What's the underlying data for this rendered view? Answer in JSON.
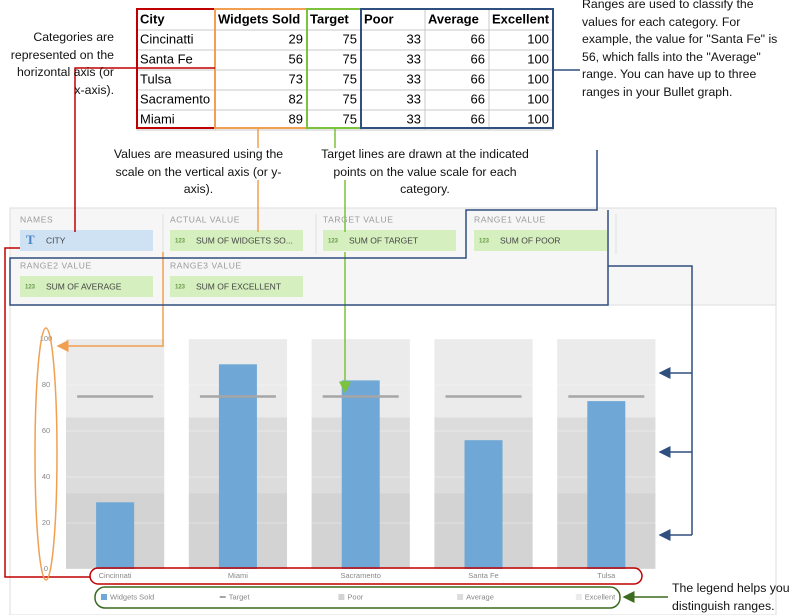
{
  "table": {
    "columns": [
      "City",
      "Widgets Sold",
      "Target",
      "Poor",
      "Average",
      "Excellent"
    ],
    "rows": [
      [
        "Cincinatti",
        29,
        75,
        33,
        66,
        100
      ],
      [
        "Santa Fe",
        56,
        75,
        33,
        66,
        100
      ],
      [
        "Tulsa",
        73,
        75,
        33,
        66,
        100
      ],
      [
        "Sacramento",
        82,
        75,
        33,
        66,
        100
      ],
      [
        "Miami",
        89,
        75,
        33,
        66,
        100
      ]
    ]
  },
  "annotations": {
    "categories": "Categories are represented on the horizontal axis (or x-axis).",
    "ranges": "Ranges are used to classify the values for each category. For example, the value for \"Santa Fe\" is 56, which falls into the \"Average\" range. You can have up to three ranges in your Bullet graph.",
    "values": "Values are measured using the scale on the vertical axis (or y-axis).",
    "targets": "Target lines are drawn at the indicated points on the value scale for each category.",
    "legend": "The legend helps you distinguish ranges."
  },
  "field_wells": [
    {
      "label": "NAMES",
      "icon": "T",
      "field": "CITY"
    },
    {
      "label": "ACTUAL VALUE",
      "icon": "123",
      "field": "SUM OF WIDGETS SO..."
    },
    {
      "label": "TARGET VALUE",
      "icon": "123",
      "field": "SUM OF TARGET"
    },
    {
      "label": "RANGE1 VALUE",
      "icon": "123",
      "field": "SUM OF POOR"
    },
    {
      "label": "RANGE2 VALUE",
      "icon": "123",
      "field": "SUM OF AVERAGE"
    },
    {
      "label": "RANGE3 VALUE",
      "icon": "123",
      "field": "SUM OF EXCELLENT"
    }
  ],
  "chart_data": {
    "type": "bullet",
    "categories": [
      "Cincinnati",
      "Miami",
      "Sacramento",
      "Santa Fe",
      "Tulsa"
    ],
    "series": [
      {
        "name": "Widgets Sold",
        "color": "#6fa8d6",
        "values": [
          29,
          89,
          82,
          56,
          73
        ]
      },
      {
        "name": "Target",
        "color": "#a6a6a6",
        "values": [
          75,
          75,
          75,
          75,
          75
        ]
      },
      {
        "name": "Poor",
        "color": "#d3d3d3",
        "values": [
          33,
          33,
          33,
          33,
          33
        ]
      },
      {
        "name": "Average",
        "color": "#dcdcdc",
        "values": [
          66,
          66,
          66,
          66,
          66
        ]
      },
      {
        "name": "Excellent",
        "color": "#ebebeb",
        "values": [
          100,
          100,
          100,
          100,
          100
        ]
      }
    ],
    "ylim": [
      0,
      100
    ],
    "yticks": [
      0,
      20,
      40,
      60,
      80,
      100
    ],
    "grid": true
  }
}
